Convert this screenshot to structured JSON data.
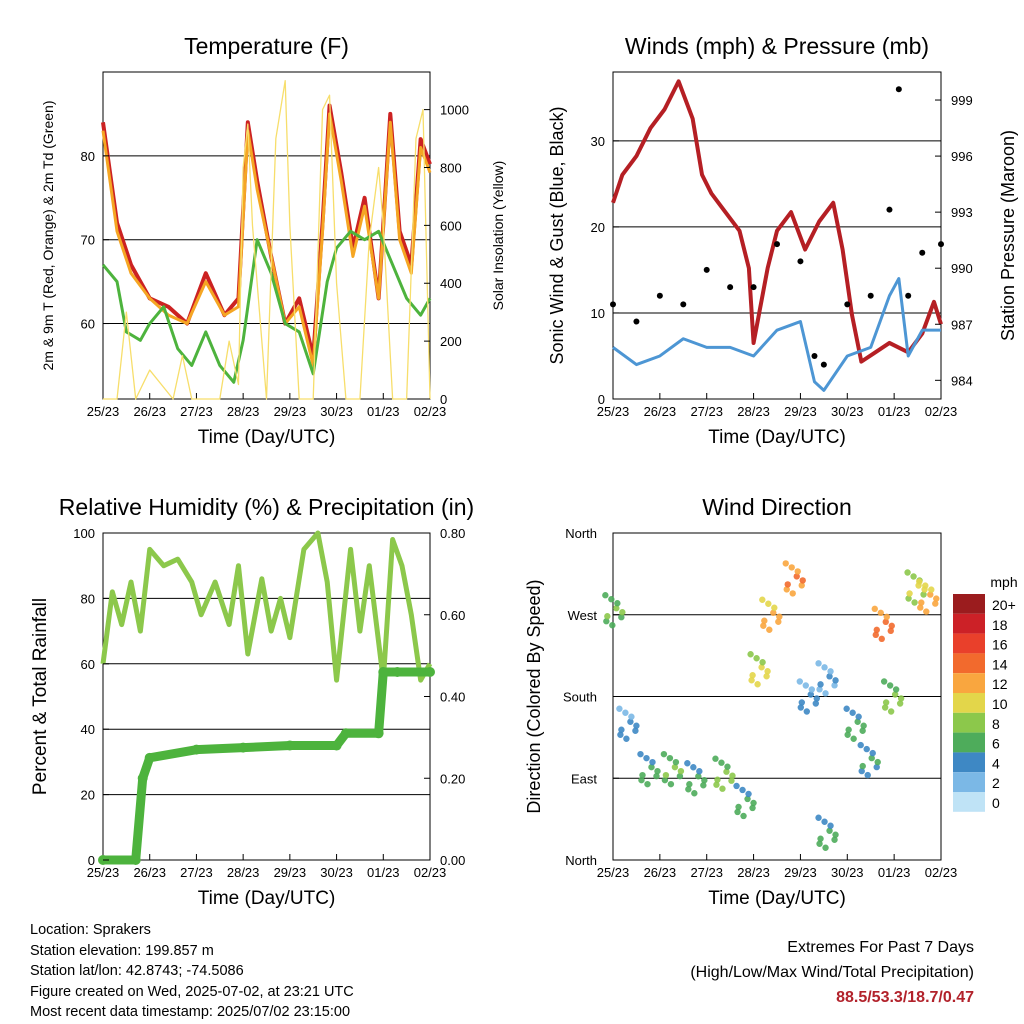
{
  "footer": {
    "location": "Location: Sprakers",
    "elevation": "Station elevation: 199.857 m",
    "latlon": "Station lat/lon: 42.8743; -74.5086",
    "created": "Figure created on Wed, 2025-07-02, at 23:21 UTC",
    "recent": "Most recent data timestamp: 2025/07/02 23:15:00",
    "extremes_title": "Extremes For Past 7 Days",
    "extremes_sub": "(High/Low/Max Wind/Total Precipitation)",
    "extremes_values": "88.5/53.3/18.7/0.47"
  },
  "chart_data": [
    {
      "type": "line",
      "title": "Temperature (F)",
      "xlabel": "Time (Day/UTC)",
      "ylabel": "2m & 9m T (Red, Orange) & 2m Td (Green)",
      "ylabel_right": "Solar Insolation (Yellow)",
      "x_ticks": [
        "25/23",
        "26/23",
        "27/23",
        "28/23",
        "29/23",
        "30/23",
        "01/23",
        "02/23"
      ],
      "ylim": [
        51,
        90
      ],
      "y_ticks": [
        60,
        70,
        80
      ],
      "ylim_right": [
        0,
        1130
      ],
      "y_ticks_right": [
        0,
        200,
        400,
        600,
        800,
        1000
      ],
      "grid_y": [
        60,
        70,
        80
      ],
      "series": [
        {
          "color": "#cc2222",
          "x": [
            0,
            0.3,
            0.6,
            1.0,
            1.4,
            1.8,
            2.2,
            2.6,
            2.9,
            3.1,
            3.3,
            3.6,
            3.9,
            4.2,
            4.5,
            4.7,
            4.85,
            5.1,
            5.35,
            5.6,
            5.9,
            6.15,
            6.35,
            6.6,
            6.8,
            7.0
          ],
          "values": [
            84,
            72,
            67,
            63,
            62,
            60,
            66,
            61,
            63,
            84,
            77,
            68,
            60,
            63,
            56,
            72,
            86,
            78,
            69,
            75,
            63,
            85,
            71,
            67,
            82,
            79
          ]
        },
        {
          "color": "#f5a623",
          "x": [
            0,
            0.3,
            0.6,
            1.0,
            1.4,
            1.8,
            2.2,
            2.6,
            2.9,
            3.1,
            3.3,
            3.6,
            3.9,
            4.2,
            4.5,
            4.7,
            4.85,
            5.1,
            5.35,
            5.6,
            5.9,
            6.15,
            6.35,
            6.6,
            6.8,
            7.0
          ],
          "values": [
            83,
            71,
            66,
            63,
            61,
            60,
            65,
            61,
            62,
            83,
            76,
            68,
            60,
            62,
            55,
            71,
            85,
            77,
            68,
            74,
            63,
            84,
            70,
            66,
            81,
            78
          ]
        },
        {
          "color": "#4db33d",
          "x": [
            0,
            0.3,
            0.5,
            0.8,
            1.0,
            1.3,
            1.6,
            1.9,
            2.2,
            2.5,
            2.8,
            3.0,
            3.3,
            3.6,
            3.9,
            4.2,
            4.5,
            4.8,
            5.0,
            5.3,
            5.6,
            5.9,
            6.2,
            6.5,
            6.8,
            7.0
          ],
          "values": [
            67,
            65,
            59,
            58,
            60,
            62,
            57,
            55,
            59,
            55,
            53,
            58,
            70,
            66,
            60,
            59,
            54,
            65,
            69,
            71,
            70,
            71,
            67,
            63,
            61,
            63
          ]
        },
        {
          "color": "#f7de6b",
          "x": [
            0,
            0.3,
            0.5,
            0.7,
            1.0,
            1.5,
            1.7,
            1.9,
            2.0,
            2.5,
            2.7,
            2.9,
            3.0,
            3.1,
            3.2,
            3.5,
            3.7,
            3.9,
            4.0,
            4.1,
            4.2,
            4.5,
            4.7,
            4.85,
            5.0,
            5.2,
            5.5,
            5.7,
            5.9,
            6.0,
            6.2,
            6.5,
            6.7,
            6.85,
            7.0
          ],
          "values_right": [
            0,
            0,
            300,
            0,
            100,
            0,
            150,
            0,
            0,
            0,
            200,
            50,
            800,
            950,
            600,
            0,
            900,
            1100,
            600,
            300,
            0,
            0,
            1000,
            1050,
            400,
            0,
            0,
            550,
            800,
            600,
            0,
            0,
            900,
            1000,
            0
          ]
        }
      ]
    },
    {
      "type": "line",
      "title": "Winds (mph) & Pressure (mb)",
      "xlabel": "Time (Day/UTC)",
      "ylabel": "Sonic Wind & Gust (Blue, Black)",
      "ylabel_right": "Station Pressure (Maroon)",
      "x_ticks": [
        "25/23",
        "26/23",
        "27/23",
        "28/23",
        "29/23",
        "30/23",
        "01/23",
        "02/23"
      ],
      "ylim": [
        0,
        38
      ],
      "y_ticks": [
        0,
        10,
        20,
        30
      ],
      "ylim_right": [
        983,
        1000.5
      ],
      "y_ticks_right": [
        984,
        987,
        990,
        993,
        996,
        999
      ],
      "grid_y": [
        10,
        20,
        30
      ],
      "series": [
        {
          "name": "",
          "color": "#b51f24",
          "x": [
            0,
            0.2,
            0.5,
            0.8,
            1.1,
            1.4,
            1.7,
            1.9,
            2.1,
            2.4,
            2.7,
            2.9,
            3.0,
            3.3,
            3.5,
            3.8,
            4.1,
            4.4,
            4.7,
            4.9,
            5.1,
            5.3,
            5.6,
            5.9,
            6.3,
            6.6,
            6.85,
            7.0
          ],
          "values_right": [
            993.5,
            995,
            996,
            997.5,
            998.5,
            1000,
            998,
            995,
            994,
            993,
            992,
            990,
            986,
            990,
            992,
            993,
            991,
            992.5,
            993.5,
            991,
            987.5,
            985,
            985.5,
            986,
            985.5,
            986.5,
            988.2,
            987
          ]
        },
        {
          "name": "",
          "color": "#4d96d4",
          "x": [
            0,
            0.5,
            1.0,
            1.5,
            2.0,
            2.5,
            3.0,
            3.5,
            4.0,
            4.3,
            4.5,
            5.0,
            5.5,
            5.9,
            6.1,
            6.3,
            6.6,
            7.0
          ],
          "values": [
            6,
            4,
            5,
            7,
            6,
            6,
            5,
            8,
            9,
            2,
            1,
            5,
            6,
            12,
            14,
            5,
            8,
            8
          ]
        },
        {
          "name": "",
          "color": "#000000",
          "x": [
            0,
            0.5,
            1.0,
            1.5,
            2.0,
            2.5,
            3.0,
            3.5,
            4.0,
            4.3,
            4.5,
            5.0,
            5.5,
            5.9,
            6.1,
            6.3,
            6.6,
            7.0
          ],
          "values": [
            11,
            9,
            12,
            11,
            15,
            13,
            13,
            18,
            16,
            5,
            4,
            11,
            12,
            22,
            36,
            12,
            17,
            18
          ]
        }
      ]
    },
    {
      "type": "line",
      "title": "Relative Humidity (%) & Precipitation (in)",
      "xlabel": "Time (Day/UTC)",
      "ylabel": "Percent & Total Rainfall",
      "x_ticks": [
        "25/23",
        "26/23",
        "27/23",
        "28/23",
        "29/23",
        "30/23",
        "01/23",
        "02/23"
      ],
      "ylim": [
        0,
        100
      ],
      "y_ticks": [
        0,
        20,
        40,
        60,
        80,
        100
      ],
      "ylim_right": [
        0,
        0.8
      ],
      "y_ticks_right": [
        "0.00",
        "0.20",
        "0.40",
        "0.60",
        "0.80"
      ],
      "grid_y": [
        20,
        40,
        60,
        80
      ],
      "series": [
        {
          "name": "",
          "color": "#8cc84b",
          "x": [
            0,
            0.2,
            0.4,
            0.6,
            0.8,
            1.0,
            1.3,
            1.6,
            1.9,
            2.1,
            2.4,
            2.7,
            2.9,
            3.1,
            3.4,
            3.6,
            3.8,
            4.0,
            4.3,
            4.6,
            4.8,
            5.0,
            5.3,
            5.5,
            5.7,
            6.0,
            6.2,
            6.4,
            6.6,
            6.8,
            7.0
          ],
          "values": [
            60,
            82,
            72,
            85,
            70,
            95,
            90,
            92,
            85,
            75,
            85,
            72,
            90,
            63,
            86,
            70,
            80,
            68,
            95,
            100,
            85,
            55,
            95,
            70,
            90,
            55,
            98,
            90,
            75,
            55,
            60
          ]
        },
        {
          "name": "",
          "color": "#4db33d",
          "x": [
            0,
            0.7,
            0.85,
            1.0,
            2.0,
            3.0,
            4.0,
            5.0,
            5.2,
            5.9,
            6.0,
            6.3,
            7.0
          ],
          "values_right": [
            0,
            0,
            0.2,
            0.25,
            0.27,
            0.275,
            0.28,
            0.28,
            0.31,
            0.31,
            0.46,
            0.46,
            0.46
          ]
        }
      ]
    },
    {
      "type": "scatter",
      "title": "Wind Direction",
      "xlabel": "Time (Day/UTC)",
      "ylabel": "Direction (Colored By Speed)",
      "x_ticks": [
        "25/23",
        "26/23",
        "27/23",
        "28/23",
        "29/23",
        "30/23",
        "01/23",
        "02/23"
      ],
      "y_ticks": [
        "North",
        "East",
        "South",
        "West",
        "North"
      ],
      "ylim": [
        0,
        360
      ],
      "grid_y": [
        90,
        180,
        270
      ],
      "colorbar_title": "mph",
      "colorbar_labels": [
        "20+",
        "18",
        "16",
        "14",
        "12",
        "10",
        "8",
        "6",
        "4",
        "2",
        "0"
      ],
      "colorbar_colors": [
        "#9b1c1e",
        "#cc2127",
        "#e9402b",
        "#f26a2d",
        "#f9a63f",
        "#e3d64a",
        "#8cc84b",
        "#4eac5b",
        "#3e88c4",
        "#7bb8e6",
        "#bfe3f6"
      ],
      "clusters": [
        {
          "x": 0.05,
          "dir": 275,
          "speed": 6
        },
        {
          "x": 0.35,
          "dir": 150,
          "speed": 3
        },
        {
          "x": 0.8,
          "dir": 100,
          "speed": 5
        },
        {
          "x": 1.3,
          "dir": 100,
          "speed": 6
        },
        {
          "x": 1.8,
          "dir": 90,
          "speed": 5
        },
        {
          "x": 2.4,
          "dir": 95,
          "speed": 7
        },
        {
          "x": 2.85,
          "dir": 65,
          "speed": 5
        },
        {
          "x": 3.15,
          "dir": 210,
          "speed": 9
        },
        {
          "x": 3.4,
          "dir": 270,
          "speed": 11
        },
        {
          "x": 3.9,
          "dir": 310,
          "speed": 12
        },
        {
          "x": 4.2,
          "dir": 180,
          "speed": 3
        },
        {
          "x": 4.6,
          "dir": 200,
          "speed": 2
        },
        {
          "x": 4.6,
          "dir": 30,
          "speed": 5
        },
        {
          "x": 5.2,
          "dir": 150,
          "speed": 5
        },
        {
          "x": 5.5,
          "dir": 110,
          "speed": 4
        },
        {
          "x": 5.8,
          "dir": 260,
          "speed": 13
        },
        {
          "x": 6.0,
          "dir": 180,
          "speed": 7
        },
        {
          "x": 6.5,
          "dir": 300,
          "speed": 8
        },
        {
          "x": 6.75,
          "dir": 290,
          "speed": 11
        }
      ]
    }
  ]
}
